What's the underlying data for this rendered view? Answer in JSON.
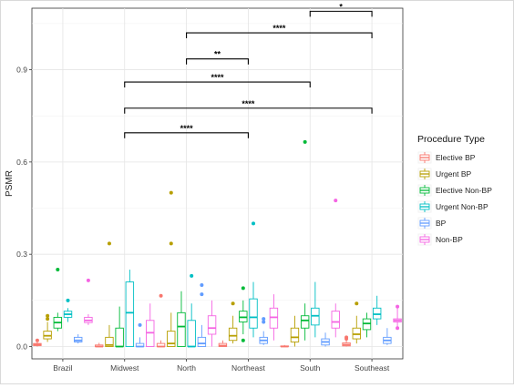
{
  "chart_data": {
    "type": "boxplot",
    "ylabel": "PSMR",
    "xlabel": "",
    "ylim": [
      -0.04,
      1.1
    ],
    "y_ticks": [
      0.0,
      0.3,
      0.6,
      0.9
    ],
    "y_tick_labels": [
      "0.0",
      "0.3",
      "0.6",
      "0.9"
    ],
    "grid": true,
    "legend_position": "right",
    "legend": {
      "title": "Procedure Type",
      "entries": [
        "Elective BP",
        "Urgent BP",
        "Elective Non-BP",
        "Urgent Non-BP",
        "BP",
        "Non-BP"
      ]
    },
    "series_colors": [
      "#F8766D",
      "#B79F00",
      "#00BA38",
      "#00BFC4",
      "#619CFF",
      "#F564E3"
    ],
    "categories": [
      "Brazil",
      "Midwest",
      "North",
      "Northeast",
      "South",
      "Southeast"
    ],
    "series": [
      {
        "name": "Elective BP",
        "boxes": [
          {
            "category": "Brazil",
            "min": 0.0,
            "q1": 0.003,
            "median": 0.006,
            "q3": 0.01,
            "max": 0.014,
            "outliers": [
              0.02
            ]
          },
          {
            "category": "Midwest",
            "min": 0.0,
            "q1": 0.0,
            "median": 0.0,
            "q3": 0.005,
            "max": 0.012,
            "outliers": []
          },
          {
            "category": "North",
            "min": 0.0,
            "q1": 0.0,
            "median": 0.0,
            "q3": 0.01,
            "max": 0.02,
            "outliers": [
              0.165
            ]
          },
          {
            "category": "Northeast",
            "min": 0.0,
            "q1": 0.0,
            "median": 0.003,
            "q3": 0.01,
            "max": 0.02,
            "outliers": []
          },
          {
            "category": "South",
            "min": 0.0,
            "q1": 0.0,
            "median": 0.0,
            "q3": 0.002,
            "max": 0.005,
            "outliers": []
          },
          {
            "category": "Southeast",
            "min": 0.0,
            "q1": 0.002,
            "median": 0.006,
            "q3": 0.012,
            "max": 0.02,
            "outliers": [
              0.025,
              0.03
            ]
          }
        ]
      },
      {
        "name": "Urgent BP",
        "boxes": [
          {
            "category": "Brazil",
            "min": 0.015,
            "q1": 0.025,
            "median": 0.035,
            "q3": 0.05,
            "max": 0.08,
            "outliers": [
              0.09,
              0.1
            ]
          },
          {
            "category": "Midwest",
            "min": 0.0,
            "q1": 0.0,
            "median": 0.005,
            "q3": 0.03,
            "max": 0.07,
            "outliers": [
              0.335
            ]
          },
          {
            "category": "North",
            "min": 0.0,
            "q1": 0.0,
            "median": 0.01,
            "q3": 0.05,
            "max": 0.11,
            "outliers": [
              0.335,
              0.5
            ]
          },
          {
            "category": "Northeast",
            "min": 0.01,
            "q1": 0.02,
            "median": 0.035,
            "q3": 0.06,
            "max": 0.1,
            "outliers": [
              0.14
            ]
          },
          {
            "category": "South",
            "min": 0.0,
            "q1": 0.015,
            "median": 0.03,
            "q3": 0.06,
            "max": 0.1,
            "outliers": []
          },
          {
            "category": "Southeast",
            "min": 0.01,
            "q1": 0.025,
            "median": 0.04,
            "q3": 0.06,
            "max": 0.1,
            "outliers": [
              0.14
            ]
          }
        ]
      },
      {
        "name": "Elective Non-BP",
        "boxes": [
          {
            "category": "Brazil",
            "min": 0.05,
            "q1": 0.06,
            "median": 0.078,
            "q3": 0.095,
            "max": 0.11,
            "outliers": [
              0.25
            ]
          },
          {
            "category": "Midwest",
            "min": 0.0,
            "q1": 0.0,
            "median": 0.0,
            "q3": 0.06,
            "max": 0.13,
            "outliers": []
          },
          {
            "category": "North",
            "min": 0.0,
            "q1": 0.0,
            "median": 0.065,
            "q3": 0.11,
            "max": 0.18,
            "outliers": []
          },
          {
            "category": "Northeast",
            "min": 0.04,
            "q1": 0.08,
            "median": 0.095,
            "q3": 0.115,
            "max": 0.15,
            "outliers": [
              0.19,
              0.02
            ]
          },
          {
            "category": "South",
            "min": 0.02,
            "q1": 0.06,
            "median": 0.085,
            "q3": 0.1,
            "max": 0.14,
            "outliers": [
              0.665
            ]
          },
          {
            "category": "Southeast",
            "min": 0.03,
            "q1": 0.055,
            "median": 0.075,
            "q3": 0.09,
            "max": 0.11,
            "outliers": []
          }
        ]
      },
      {
        "name": "Urgent Non-BP",
        "boxes": [
          {
            "category": "Brazil",
            "min": 0.08,
            "q1": 0.095,
            "median": 0.105,
            "q3": 0.115,
            "max": 0.125,
            "outliers": [
              0.15
            ]
          },
          {
            "category": "Midwest",
            "min": 0.0,
            "q1": 0.0,
            "median": 0.11,
            "q3": 0.21,
            "max": 0.25,
            "outliers": []
          },
          {
            "category": "North",
            "min": 0.0,
            "q1": 0.0,
            "median": 0.0,
            "q3": 0.085,
            "max": 0.14,
            "outliers": [
              0.23
            ]
          },
          {
            "category": "Northeast",
            "min": 0.03,
            "q1": 0.06,
            "median": 0.095,
            "q3": 0.155,
            "max": 0.21,
            "outliers": [
              0.4
            ]
          },
          {
            "category": "South",
            "min": 0.03,
            "q1": 0.07,
            "median": 0.1,
            "q3": 0.125,
            "max": 0.21,
            "outliers": []
          },
          {
            "category": "Southeast",
            "min": 0.07,
            "q1": 0.09,
            "median": 0.105,
            "q3": 0.125,
            "max": 0.165,
            "outliers": []
          }
        ]
      },
      {
        "name": "BP",
        "boxes": [
          {
            "category": "Brazil",
            "min": 0.01,
            "q1": 0.015,
            "median": 0.02,
            "q3": 0.03,
            "max": 0.04,
            "outliers": []
          },
          {
            "category": "Midwest",
            "min": 0.0,
            "q1": 0.0,
            "median": 0.0,
            "q3": 0.01,
            "max": 0.03,
            "outliers": [
              0.07
            ]
          },
          {
            "category": "North",
            "min": 0.0,
            "q1": 0.0,
            "median": 0.01,
            "q3": 0.03,
            "max": 0.07,
            "outliers": [
              0.17,
              0.2
            ]
          },
          {
            "category": "Northeast",
            "min": 0.005,
            "q1": 0.01,
            "median": 0.02,
            "q3": 0.03,
            "max": 0.05,
            "outliers": [
              0.08,
              0.09
            ]
          },
          {
            "category": "South",
            "min": 0.0,
            "q1": 0.005,
            "median": 0.015,
            "q3": 0.025,
            "max": 0.045,
            "outliers": []
          },
          {
            "category": "Southeast",
            "min": 0.005,
            "q1": 0.01,
            "median": 0.02,
            "q3": 0.03,
            "max": 0.06,
            "outliers": []
          }
        ]
      },
      {
        "name": "Non-BP",
        "boxes": [
          {
            "category": "Brazil",
            "min": 0.07,
            "q1": 0.078,
            "median": 0.085,
            "q3": 0.095,
            "max": 0.105,
            "outliers": [
              0.215
            ]
          },
          {
            "category": "Midwest",
            "min": 0.0,
            "q1": 0.0,
            "median": 0.045,
            "q3": 0.085,
            "max": 0.14,
            "outliers": []
          },
          {
            "category": "North",
            "min": 0.0,
            "q1": 0.04,
            "median": 0.06,
            "q3": 0.1,
            "max": 0.15,
            "outliers": []
          },
          {
            "category": "Northeast",
            "min": 0.02,
            "q1": 0.06,
            "median": 0.095,
            "q3": 0.125,
            "max": 0.17,
            "outliers": []
          },
          {
            "category": "South",
            "min": 0.03,
            "q1": 0.06,
            "median": 0.08,
            "q3": 0.115,
            "max": 0.14,
            "outliers": [
              0.475
            ]
          },
          {
            "category": "Southeast",
            "min": 0.06,
            "q1": 0.08,
            "median": 0.085,
            "q3": 0.09,
            "max": 0.13,
            "outliers": [
              0.13,
              0.06
            ]
          }
        ]
      }
    ],
    "significance": [
      {
        "from": "South",
        "to": "Southeast",
        "label": "*",
        "y": 1.09
      },
      {
        "from": "North",
        "to": "Southeast",
        "label": "****",
        "y": 1.02
      },
      {
        "from": "North",
        "to": "Northeast",
        "label": "**",
        "y": 0.935
      },
      {
        "from": "Midwest",
        "to": "South",
        "label": "****",
        "y": 0.86
      },
      {
        "from": "Midwest",
        "to": "Southeast",
        "label": "****",
        "y": 0.775
      },
      {
        "from": "Midwest",
        "to": "Northeast",
        "label": "****",
        "y": 0.695
      }
    ]
  }
}
